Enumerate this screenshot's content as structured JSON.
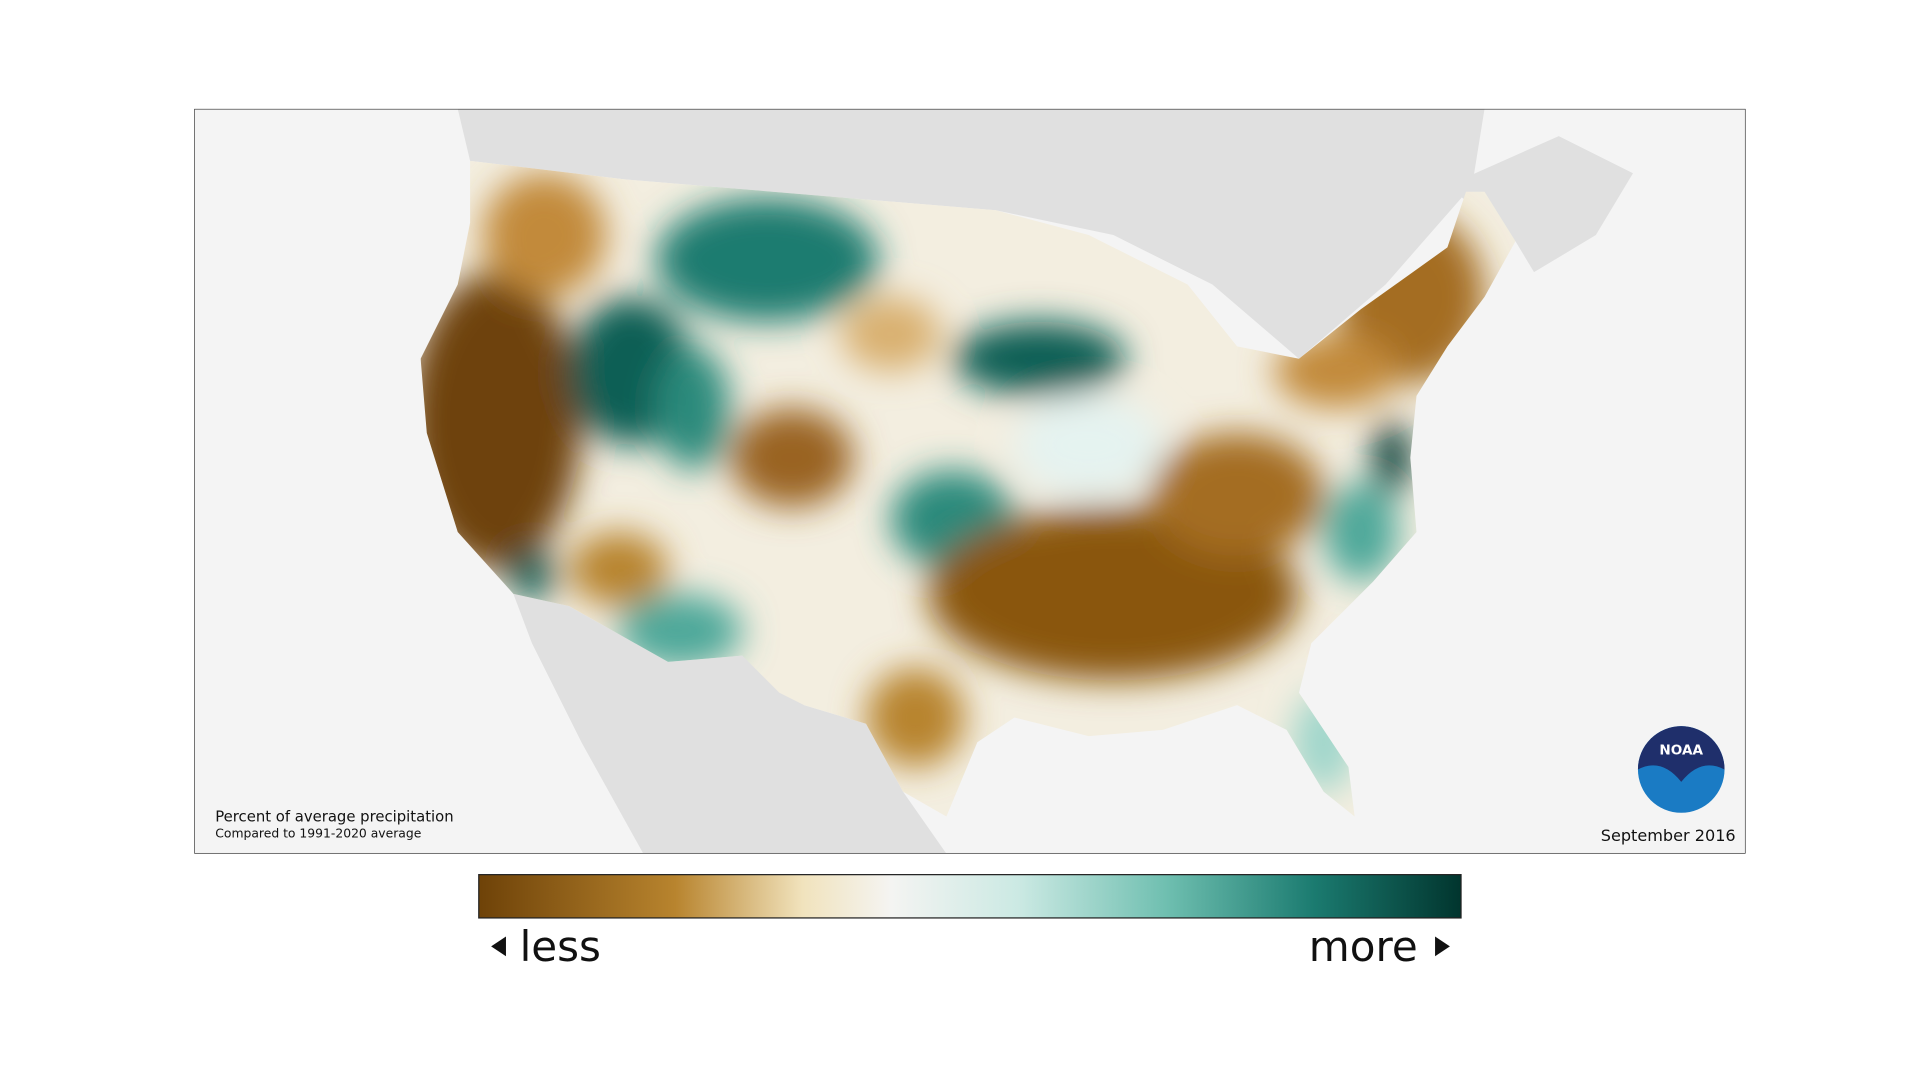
{
  "map": {
    "title": "Percent of average precipitation",
    "subtitle": "Compared to 1991-2020 average",
    "date": "September 2016",
    "legend": {
      "low": "less",
      "high": "more"
    },
    "logo": "NOAA"
  }
}
